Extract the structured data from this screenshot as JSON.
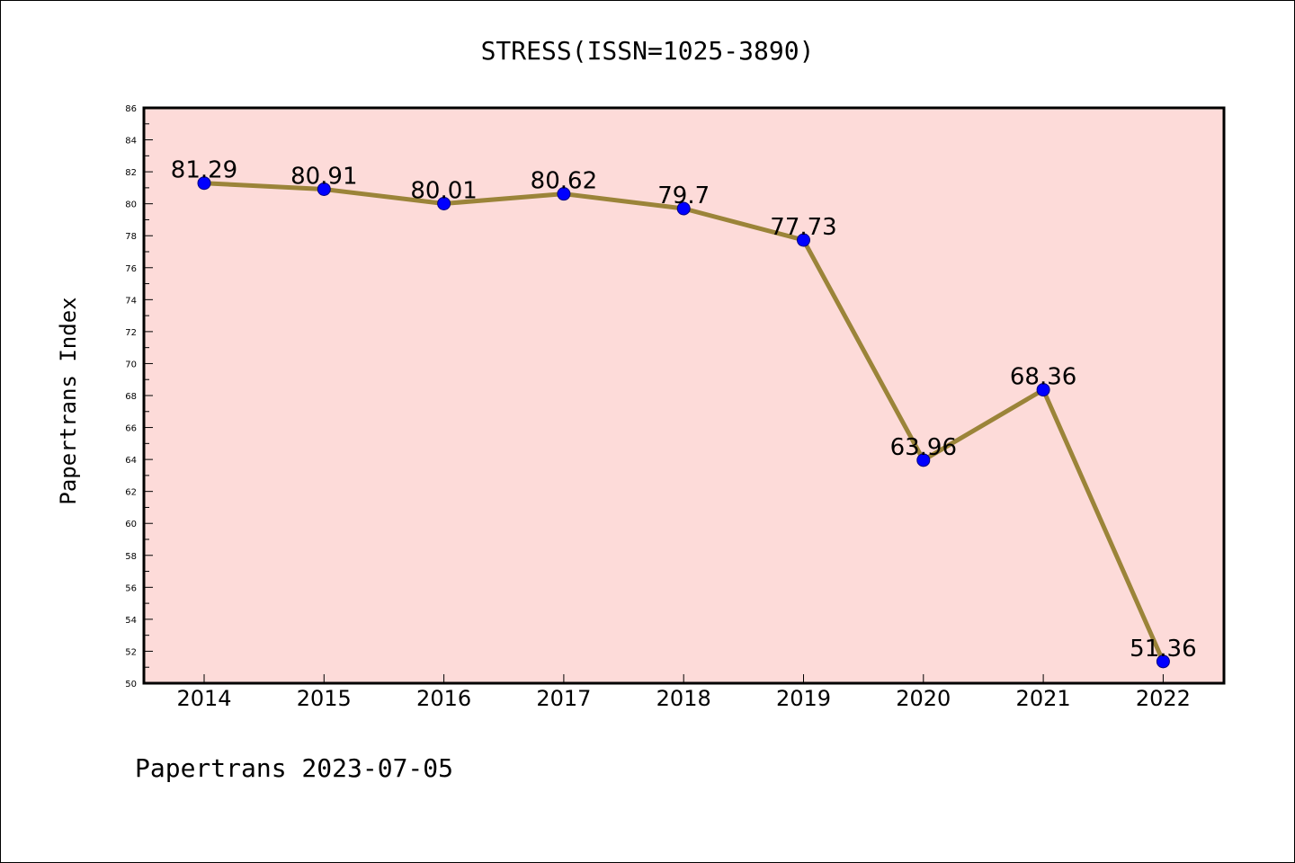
{
  "chart_data": {
    "type": "line",
    "title": "STRESS(ISSN=1025-3890)",
    "ylabel": "Papertrans Index",
    "xlabel": "",
    "footer": "Papertrans 2023-07-05",
    "ylim": [
      50,
      86
    ],
    "ytick_step": 2,
    "categories": [
      "2014",
      "2015",
      "2016",
      "2017",
      "2018",
      "2019",
      "2020",
      "2021",
      "2022"
    ],
    "values": [
      81.29,
      80.91,
      80.01,
      80.62,
      79.7,
      77.73,
      63.96,
      68.36,
      51.36
    ],
    "data_labels": [
      "81.29",
      "80.91",
      "80.01",
      "80.62",
      "79.7",
      "77.73",
      "63.96",
      "68.36",
      "51.36"
    ],
    "grid": false,
    "colors": {
      "plot_background": "#fddbd9",
      "line": "#9b8439",
      "marker": "#0000ff",
      "marker_edge": "#000080"
    }
  }
}
